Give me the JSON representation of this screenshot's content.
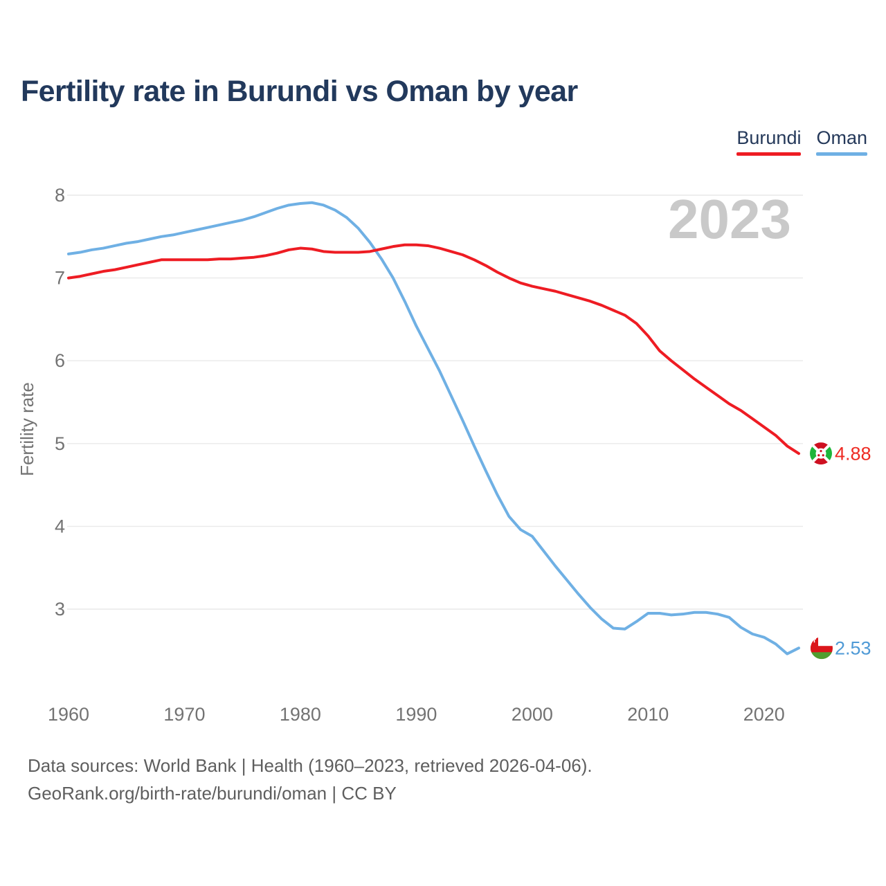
{
  "header": {
    "title": "Fertility rate in Burundi vs Oman by year"
  },
  "legend": {
    "items": [
      {
        "label": "Burundi",
        "color": "#ee1c23"
      },
      {
        "label": "Oman",
        "color": "#6fb0e4"
      }
    ]
  },
  "watermark": "2023",
  "footer": {
    "line1": "Data sources: World Bank | Health (1960–2023, retrieved 2026-04-06).",
    "line2": "GeoRank.org/birth-rate/burundi/oman | CC BY"
  },
  "chart_data": {
    "type": "line",
    "title": "Fertility rate in Burundi vs Oman by year",
    "xlabel": "",
    "ylabel": "Fertility rate",
    "x_ticks": [
      1960,
      1970,
      1980,
      1990,
      2000,
      2010,
      2020
    ],
    "y_ticks": [
      8,
      7,
      6,
      5,
      4,
      3
    ],
    "xlim": [
      1960,
      2023
    ],
    "ylim": [
      2.3,
      8.1
    ],
    "grid": true,
    "legend_position": "top-right",
    "years": [
      1960,
      1961,
      1962,
      1963,
      1964,
      1965,
      1966,
      1967,
      1968,
      1969,
      1970,
      1971,
      1972,
      1973,
      1974,
      1975,
      1976,
      1977,
      1978,
      1979,
      1980,
      1981,
      1982,
      1983,
      1984,
      1985,
      1986,
      1987,
      1988,
      1989,
      1990,
      1991,
      1992,
      1993,
      1994,
      1995,
      1996,
      1997,
      1998,
      1999,
      2000,
      2001,
      2002,
      2003,
      2004,
      2005,
      2006,
      2007,
      2008,
      2009,
      2010,
      2011,
      2012,
      2013,
      2014,
      2015,
      2016,
      2017,
      2018,
      2019,
      2020,
      2021,
      2022,
      2023
    ],
    "series": [
      {
        "name": "Burundi",
        "color": "#ee1c23",
        "end_label": "4.88",
        "end_value": 4.88,
        "values": [
          7.0,
          7.02,
          7.05,
          7.08,
          7.1,
          7.13,
          7.16,
          7.19,
          7.22,
          7.22,
          7.22,
          7.22,
          7.22,
          7.23,
          7.23,
          7.24,
          7.25,
          7.27,
          7.3,
          7.34,
          7.36,
          7.35,
          7.32,
          7.31,
          7.31,
          7.31,
          7.32,
          7.35,
          7.38,
          7.4,
          7.4,
          7.39,
          7.36,
          7.32,
          7.28,
          7.22,
          7.15,
          7.07,
          7.0,
          6.94,
          6.9,
          6.87,
          6.84,
          6.8,
          6.76,
          6.72,
          6.67,
          6.61,
          6.55,
          6.45,
          6.3,
          6.12,
          6.0,
          5.89,
          5.78,
          5.68,
          5.58,
          5.48,
          5.4,
          5.3,
          5.2,
          5.1,
          4.97,
          4.88
        ]
      },
      {
        "name": "Oman",
        "color": "#6fb0e4",
        "end_label": "2.53",
        "end_value": 2.53,
        "values": [
          7.29,
          7.31,
          7.34,
          7.36,
          7.39,
          7.42,
          7.44,
          7.47,
          7.5,
          7.52,
          7.55,
          7.58,
          7.61,
          7.64,
          7.67,
          7.7,
          7.74,
          7.79,
          7.84,
          7.88,
          7.9,
          7.91,
          7.88,
          7.82,
          7.73,
          7.6,
          7.43,
          7.23,
          7.0,
          6.72,
          6.42,
          6.15,
          5.88,
          5.58,
          5.28,
          4.97,
          4.67,
          4.38,
          4.12,
          3.96,
          3.88,
          3.7,
          3.52,
          3.35,
          3.18,
          3.02,
          2.88,
          2.77,
          2.76,
          2.85,
          2.95,
          2.95,
          2.93,
          2.94,
          2.96,
          2.96,
          2.94,
          2.9,
          2.78,
          2.7,
          2.66,
          2.58,
          2.46,
          2.53
        ]
      }
    ],
    "end_year_label": "2023"
  },
  "colors": {
    "title": "#22395c",
    "tick": "#737373",
    "grid": "#e9e9e9",
    "watermark": "#c9c9c9",
    "burundi_text": "#ee2b23",
    "oman_text": "#4f9ad6"
  }
}
